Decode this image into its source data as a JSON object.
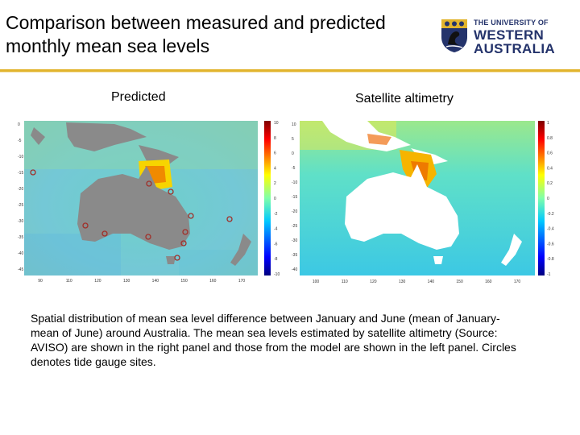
{
  "slide": {
    "title": "Comparison between measured and predicted\nmonthly mean sea levels",
    "logo": {
      "line1": "THE UNIVERSITY OF",
      "line2": "WESTERN",
      "line3": "AUSTRALIA",
      "crest_icon": "uwa-crest-icon",
      "colors": {
        "navy": "#24336b",
        "gold": "#e2b42d"
      }
    },
    "accent_rule_color": "#e2b42d"
  },
  "figure": {
    "left_label": "Predicted",
    "right_label": "Satellite altimetry",
    "left_panel": {
      "x_ticks": [
        "90",
        "110",
        "120",
        "130",
        "140",
        "150",
        "160",
        "170"
      ],
      "y_ticks": [
        "0",
        "-5",
        "-10",
        "-15",
        "-20",
        "-25",
        "-30",
        "-35",
        "-40",
        "-45"
      ],
      "colorbar_ticks": [
        "10",
        "8",
        "6",
        "4",
        "2",
        "0",
        "-2",
        "-4",
        "-6",
        "-8",
        "-10"
      ]
    },
    "right_panel": {
      "x_ticks": [
        "100",
        "110",
        "120",
        "130",
        "140",
        "150",
        "160",
        "170"
      ],
      "y_ticks": [
        "10",
        "5",
        "0",
        "-5",
        "-10",
        "-15",
        "-20",
        "-25",
        "-30",
        "-35",
        "-40"
      ],
      "colorbar_ticks": [
        "1",
        "0.8",
        "0.6",
        "0.4",
        "0.2",
        "0",
        "-0.2",
        "-0.4",
        "-0.6",
        "-0.8",
        "-1"
      ]
    }
  },
  "caption": "Spatial distribution of mean sea level difference between January and June (mean of January- mean of June) around Australia. The mean sea levels estimated by satellite altimetry (Source: AVISO) are shown in the right panel and those from the model are shown in the left panel. Circles denotes tide gauge sites."
}
